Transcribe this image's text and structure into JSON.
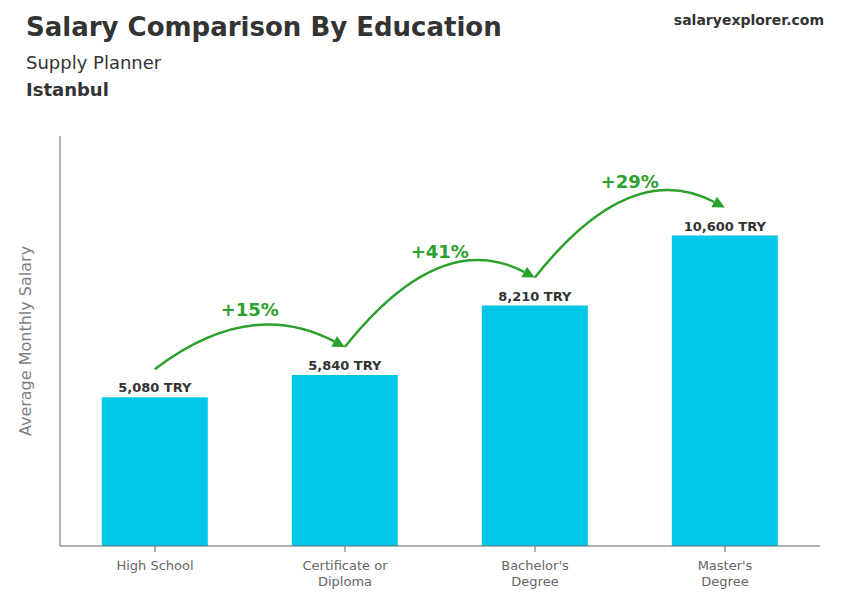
{
  "chart_data": {
    "type": "bar",
    "title": "Salary Comparison By Education",
    "subtitle": "Supply Planner",
    "ylabel": "Average Monthly Salary",
    "categories": [
      "High School",
      "Certificate or\nDiploma",
      "Bachelor's\nDegree",
      "Master's\nDegree"
    ],
    "values": [
      5080,
      5840,
      8210,
      10600
    ],
    "value_labels": [
      "5,080 TRY",
      "5,840 TRY",
      "8,210 TRY",
      "10,600 TRY"
    ],
    "data_labels": true,
    "color": "#00C8E8",
    "ylim": [
      0,
      14000
    ],
    "tick_labels": "x",
    "grid": false,
    "annotations": [
      {
        "text": "Istanbul"
      },
      {
        "text": "salaryexplorer.com"
      },
      {
        "text": "+15%",
        "from": "High School",
        "to": "Certificate or\nDiploma",
        "color": "#2ca02c"
      },
      {
        "text": "+41%",
        "from": "Certificate or\nDiploma",
        "to": "Bachelor's\nDegree",
        "color": "#2ca02c"
      },
      {
        "text": "+29%",
        "from": "Bachelor's\nDegree",
        "to": "Master's\nDegree",
        "color": "#2ca02c"
      }
    ]
  }
}
